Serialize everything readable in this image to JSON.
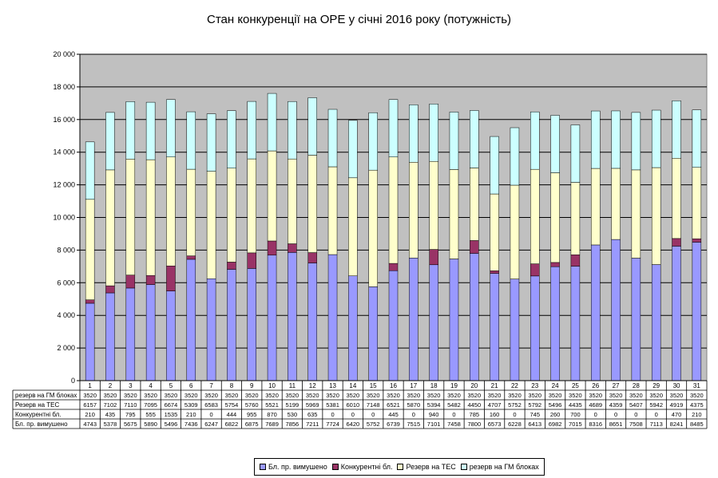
{
  "chart_data": {
    "type": "bar",
    "stacked": true,
    "title": "Стан конкуренції на ОРЕ  у січні 2016 року (потужність)",
    "categories": [
      "1",
      "2",
      "3",
      "4",
      "5",
      "6",
      "7",
      "8",
      "9",
      "10",
      "11",
      "12",
      "13",
      "14",
      "15",
      "16",
      "17",
      "18",
      "19",
      "20",
      "21",
      "22",
      "23",
      "24",
      "25",
      "26",
      "27",
      "28",
      "29",
      "30",
      "31"
    ],
    "ylim": [
      0,
      20000
    ],
    "yticks": [
      "0",
      "2 000",
      "4 000",
      "6 000",
      "8 000",
      "10 000",
      "12 000",
      "14 000",
      "16 000",
      "18 000",
      "20 000"
    ],
    "grid": true,
    "legend_position": "bottom",
    "series": [
      {
        "name": "Бл. пр. вимушено",
        "color": "#9999FF",
        "values": [
          4743,
          5378,
          5675,
          5890,
          5496,
          7436,
          6247,
          6822,
          6875,
          7689,
          7856,
          7211,
          7724,
          6420,
          5752,
          6739,
          7515,
          7101,
          7458,
          7800,
          6573,
          6228,
          6413,
          6982,
          7015,
          8316,
          8651,
          7508,
          7113,
          8241,
          8485
        ]
      },
      {
        "name": "Конкурентні бл.",
        "color": "#993366",
        "values": [
          210,
          435,
          795,
          555,
          1535,
          210,
          0,
          444,
          955,
          870,
          530,
          635,
          0,
          0,
          0,
          445,
          0,
          940,
          0,
          785,
          160,
          0,
          745,
          260,
          700,
          0,
          0,
          0,
          0,
          470,
          210
        ]
      },
      {
        "name": "Резерв на ТЕС",
        "color": "#FFFFCC",
        "values": [
          6157,
          7102,
          7110,
          7095,
          6674,
          5309,
          6583,
          5754,
          5760,
          5521,
          5199,
          5969,
          5381,
          6010,
          7148,
          6521,
          5870,
          5394,
          5482,
          4450,
          4707,
          5752,
          5792,
          5496,
          4435,
          4689,
          4359,
          5407,
          5942,
          4919,
          4375
        ]
      },
      {
        "name": "резерв на ГМ блоках",
        "color": "#CCFFFF",
        "values": [
          3520,
          3520,
          3520,
          3520,
          3520,
          3520,
          3520,
          3520,
          3520,
          3520,
          3520,
          3520,
          3520,
          3520,
          3520,
          3520,
          3520,
          3520,
          3520,
          3520,
          3520,
          3520,
          3520,
          3520,
          3520,
          3520,
          3520,
          3520,
          3520,
          3520,
          3520
        ]
      }
    ],
    "table_row_labels": [
      "резерв на ГМ блоках",
      "Резерв на ТЕС",
      "Конкурентні бл.",
      "Бл. пр. вимушено"
    ],
    "colors": {
      "plot_background": "#C0C0C0",
      "gridline": "#000000"
    }
  }
}
